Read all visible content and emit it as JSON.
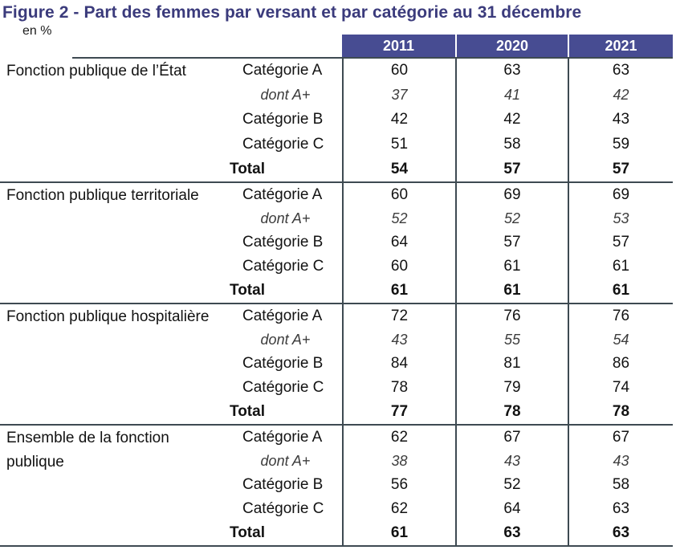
{
  "chart_data": {
    "type": "table",
    "title": "Figure 2 - Part des femmes par versant et par catégorie au 31 décembre",
    "unit_label": "en %",
    "columns": [
      "2011",
      "2020",
      "2021"
    ],
    "sections": [
      {
        "label": "Fonction publique de l’État",
        "rows": [
          {
            "category": "Catégorie A",
            "style": "normal",
            "values": [
              "60",
              "63",
              "63"
            ]
          },
          {
            "category": "dont A+",
            "style": "italic",
            "values": [
              "37",
              "41",
              "42"
            ]
          },
          {
            "category": "Catégorie B",
            "style": "normal",
            "values": [
              "42",
              "42",
              "43"
            ]
          },
          {
            "category": "Catégorie C",
            "style": "normal",
            "values": [
              "51",
              "58",
              "59"
            ]
          },
          {
            "category": "Total",
            "style": "bold",
            "values": [
              "54",
              "57",
              "57"
            ]
          }
        ]
      },
      {
        "label": "Fonction publique territoriale",
        "rows": [
          {
            "category": "Catégorie A",
            "style": "normal",
            "values": [
              "60",
              "69",
              "69"
            ]
          },
          {
            "category": "dont A+",
            "style": "italic",
            "values": [
              "52",
              "52",
              "53"
            ]
          },
          {
            "category": "Catégorie B",
            "style": "normal",
            "values": [
              "64",
              "57",
              "57"
            ]
          },
          {
            "category": "Catégorie C",
            "style": "normal",
            "values": [
              "60",
              "61",
              "61"
            ]
          },
          {
            "category": "Total",
            "style": "bold",
            "values": [
              "61",
              "61",
              "61"
            ]
          }
        ]
      },
      {
        "label": "Fonction publique hospitalière",
        "rows": [
          {
            "category": "Catégorie A",
            "style": "normal",
            "values": [
              "72",
              "76",
              "76"
            ]
          },
          {
            "category": "dont A+",
            "style": "italic",
            "values": [
              "43",
              "55",
              "54"
            ]
          },
          {
            "category": "Catégorie B",
            "style": "normal",
            "values": [
              "84",
              "81",
              "86"
            ]
          },
          {
            "category": "Catégorie C",
            "style": "normal",
            "values": [
              "78",
              "79",
              "74"
            ]
          },
          {
            "category": "Total",
            "style": "bold",
            "values": [
              "77",
              "78",
              "78"
            ]
          }
        ]
      },
      {
        "label": "Ensemble de la fonction publique",
        "rows": [
          {
            "category": "Catégorie A",
            "style": "normal",
            "values": [
              "62",
              "67",
              "67"
            ]
          },
          {
            "category": "dont A+",
            "style": "italic",
            "values": [
              "38",
              "43",
              "43"
            ]
          },
          {
            "category": "Catégorie B",
            "style": "normal",
            "values": [
              "56",
              "52",
              "58"
            ]
          },
          {
            "category": "Catégorie C",
            "style": "normal",
            "values": [
              "62",
              "64",
              "63"
            ]
          },
          {
            "category": "Total",
            "style": "bold",
            "values": [
              "61",
              "63",
              "63"
            ]
          }
        ]
      }
    ],
    "colors": {
      "header_bg": "#474C92",
      "title_text": "#3B3B7C",
      "rule": "#3E4A52",
      "dont_text": "#3C3C3C"
    }
  }
}
